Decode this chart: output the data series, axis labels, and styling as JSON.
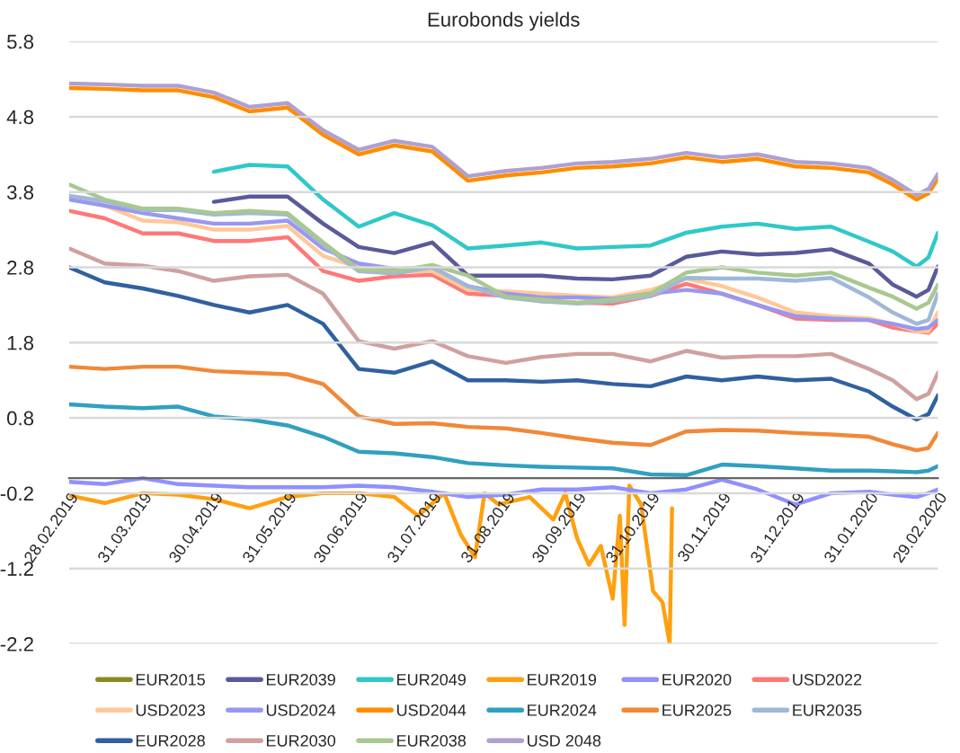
{
  "chart_data": {
    "type": "line",
    "title": "Eurobonds yields",
    "x": [
      "2019-02-28",
      "2019-03-15",
      "2019-03-31",
      "2019-04-15",
      "2019-04-30",
      "2019-05-15",
      "2019-05-31",
      "2019-06-15",
      "2019-06-30",
      "2019-07-15",
      "2019-07-31",
      "2019-08-15",
      "2019-08-31",
      "2019-09-15",
      "2019-09-30",
      "2019-10-15",
      "2019-10-31",
      "2019-11-15",
      "2019-11-30",
      "2019-12-15",
      "2019-12-31",
      "2020-01-15",
      "2020-01-31",
      "2020-02-10",
      "2020-02-20",
      "2020-02-25",
      "2020-02-29"
    ],
    "xlim": [
      "2019-02-28",
      "2020-02-29"
    ],
    "xticks": [
      {
        "value": "2019-02-28",
        "label": "28.02.2019"
      },
      {
        "value": "2019-03-31",
        "label": "31.03.2019"
      },
      {
        "value": "2019-04-30",
        "label": "30.04.2019"
      },
      {
        "value": "2019-05-31",
        "label": "31.05.2019"
      },
      {
        "value": "2019-06-30",
        "label": "30.06.2019"
      },
      {
        "value": "2019-07-31",
        "label": "31.07.2019"
      },
      {
        "value": "2019-08-31",
        "label": "31.08.2019"
      },
      {
        "value": "2019-09-30",
        "label": "30.09.2019"
      },
      {
        "value": "2019-10-31",
        "label": "31.10.2019"
      },
      {
        "value": "2019-11-30",
        "label": "30.11.2019"
      },
      {
        "value": "2019-12-31",
        "label": "31.12.2019"
      },
      {
        "value": "2020-01-31",
        "label": "31.01.2020"
      },
      {
        "value": "2020-02-29",
        "label": "29.02.2020"
      }
    ],
    "ylim": [
      -2.2,
      5.8
    ],
    "yticks": [
      -2.2,
      -1.2,
      -0.2,
      0.8,
      1.8,
      2.8,
      3.8,
      4.8,
      5.8
    ],
    "grid": "y",
    "legend": "bottom",
    "series": [
      {
        "name": "EUR2015",
        "color": "#8a8a20",
        "values": [
          null,
          null,
          null,
          null,
          null,
          null,
          null,
          null,
          null,
          null,
          null,
          null,
          null,
          null,
          null,
          null,
          null,
          null,
          null,
          null,
          null,
          null,
          null,
          null,
          null,
          null,
          null
        ]
      },
      {
        "name": "EUR2039",
        "color": "#5a5a9a",
        "x": [
          "2019-04-30",
          "2019-05-15",
          "2019-05-31",
          "2019-06-15",
          "2019-06-30",
          "2019-07-15",
          "2019-07-31",
          "2019-08-15",
          "2019-08-31",
          "2019-09-15",
          "2019-09-30",
          "2019-10-15",
          "2019-10-31",
          "2019-11-15",
          "2019-11-30",
          "2019-12-15",
          "2019-12-31",
          "2020-01-15",
          "2020-01-31",
          "2020-02-10",
          "2020-02-20",
          "2020-02-25",
          "2020-02-29"
        ],
        "values": [
          3.67,
          3.74,
          3.74,
          3.38,
          3.07,
          2.99,
          3.13,
          2.69,
          2.69,
          2.69,
          2.65,
          2.64,
          2.69,
          2.94,
          3.01,
          2.97,
          2.99,
          3.04,
          2.85,
          2.57,
          2.41,
          2.5,
          2.81
        ]
      },
      {
        "name": "EUR2049",
        "color": "#30c8c8",
        "x": [
          "2019-04-30",
          "2019-05-15",
          "2019-05-31",
          "2019-06-15",
          "2019-06-30",
          "2019-07-15",
          "2019-07-31",
          "2019-08-15",
          "2019-08-31",
          "2019-09-15",
          "2019-09-30",
          "2019-10-15",
          "2019-10-31",
          "2019-11-15",
          "2019-11-30",
          "2019-12-15",
          "2019-12-31",
          "2020-01-15",
          "2020-01-31",
          "2020-02-10",
          "2020-02-20",
          "2020-02-25",
          "2020-02-29"
        ],
        "values": [
          4.07,
          4.16,
          4.14,
          3.7,
          3.34,
          3.52,
          3.36,
          3.05,
          3.09,
          3.13,
          3.05,
          3.07,
          3.09,
          3.26,
          3.34,
          3.38,
          3.31,
          3.34,
          3.14,
          3.01,
          2.81,
          2.93,
          3.26
        ]
      },
      {
        "name": "EUR2019",
        "color": "#ffa010",
        "x": [
          "2019-02-28",
          "2019-03-15",
          "2019-03-31",
          "2019-04-15",
          "2019-04-30",
          "2019-05-15",
          "2019-05-31",
          "2019-06-15",
          "2019-06-30",
          "2019-07-15",
          "2019-07-25",
          "2019-08-05",
          "2019-08-12",
          "2019-08-18",
          "2019-08-22",
          "2019-08-28",
          "2019-09-10",
          "2019-09-20",
          "2019-09-25",
          "2019-09-30",
          "2019-10-05",
          "2019-10-10",
          "2019-10-15",
          "2019-10-18",
          "2019-10-20",
          "2019-10-22",
          "2019-10-27",
          "2019-11-01",
          "2019-11-05",
          "2019-11-08",
          "2019-11-09"
        ],
        "values": [
          -0.23,
          -0.33,
          -0.2,
          -0.22,
          -0.28,
          -0.4,
          -0.25,
          -0.2,
          -0.2,
          -0.25,
          -0.5,
          -0.2,
          -0.75,
          -1.05,
          -0.2,
          -0.35,
          -0.25,
          -0.55,
          -0.2,
          -0.8,
          -1.15,
          -0.9,
          -1.6,
          -0.5,
          -1.95,
          -0.1,
          -0.35,
          -1.5,
          -1.65,
          -2.2,
          -0.4
        ]
      },
      {
        "name": "EUR2020",
        "color": "#9090ff",
        "values": [
          -0.05,
          -0.08,
          0.0,
          -0.08,
          -0.1,
          -0.12,
          -0.12,
          -0.12,
          -0.1,
          -0.12,
          -0.18,
          -0.25,
          -0.22,
          -0.15,
          -0.15,
          -0.12,
          -0.2,
          -0.15,
          -0.02,
          -0.15,
          -0.35,
          -0.2,
          -0.18,
          -0.22,
          -0.25,
          -0.2,
          -0.15
        ]
      },
      {
        "name": "USD2022",
        "color": "#ff7878",
        "values": [
          3.55,
          3.45,
          3.25,
          3.25,
          3.15,
          3.15,
          3.2,
          2.75,
          2.62,
          2.68,
          2.7,
          2.45,
          2.42,
          2.35,
          2.33,
          2.32,
          2.42,
          2.58,
          2.45,
          2.3,
          2.12,
          2.1,
          2.1,
          2.0,
          1.95,
          1.93,
          2.05
        ]
      },
      {
        "name": "USD2023",
        "color": "#ffc898",
        "values": [
          3.75,
          3.62,
          3.42,
          3.4,
          3.3,
          3.3,
          3.35,
          2.95,
          2.8,
          2.75,
          2.75,
          2.5,
          2.48,
          2.45,
          2.42,
          2.4,
          2.5,
          2.65,
          2.55,
          2.4,
          2.2,
          2.15,
          2.12,
          2.05,
          1.95,
          1.95,
          2.2
        ]
      },
      {
        "name": "USD2024",
        "color": "#9898f0",
        "values": [
          3.7,
          3.62,
          3.52,
          3.45,
          3.38,
          3.38,
          3.42,
          3.05,
          2.85,
          2.78,
          2.8,
          2.55,
          2.45,
          2.4,
          2.4,
          2.38,
          2.45,
          2.5,
          2.45,
          2.3,
          2.15,
          2.12,
          2.1,
          2.05,
          1.98,
          2.0,
          2.1
        ]
      },
      {
        "name": "USD2044",
        "color": "#ff8c00",
        "values": [
          5.18,
          5.17,
          5.15,
          5.15,
          5.06,
          4.87,
          4.92,
          4.56,
          4.3,
          4.42,
          4.34,
          3.95,
          4.02,
          4.06,
          4.12,
          4.14,
          4.18,
          4.26,
          4.2,
          4.24,
          4.14,
          4.12,
          4.06,
          3.9,
          3.7,
          3.78,
          3.98
        ]
      },
      {
        "name": "EUR2024",
        "color": "#30a0c0",
        "values": [
          0.98,
          0.95,
          0.93,
          0.95,
          0.82,
          0.78,
          0.7,
          0.55,
          0.35,
          0.33,
          0.28,
          0.2,
          0.17,
          0.15,
          0.14,
          0.13,
          0.05,
          0.04,
          0.18,
          0.16,
          0.13,
          0.1,
          0.1,
          0.09,
          0.08,
          0.1,
          0.16
        ]
      },
      {
        "name": "EUR2025",
        "color": "#f08838",
        "values": [
          1.48,
          1.45,
          1.48,
          1.48,
          1.42,
          1.4,
          1.38,
          1.25,
          0.82,
          0.72,
          0.73,
          0.68,
          0.66,
          0.6,
          0.53,
          0.47,
          0.44,
          0.62,
          0.64,
          0.63,
          0.6,
          0.58,
          0.55,
          0.45,
          0.37,
          0.4,
          0.6
        ]
      },
      {
        "name": "EUR2035",
        "color": "#a0b8d8",
        "values": [
          3.75,
          3.68,
          3.56,
          3.56,
          3.5,
          3.52,
          3.5,
          3.1,
          2.75,
          2.72,
          2.8,
          2.55,
          2.4,
          2.35,
          2.32,
          2.35,
          2.42,
          2.66,
          2.65,
          2.65,
          2.62,
          2.66,
          2.4,
          2.2,
          2.05,
          2.1,
          2.45
        ]
      },
      {
        "name": "EUR2028",
        "color": "#3060a0",
        "values": [
          2.8,
          2.6,
          2.52,
          2.42,
          2.3,
          2.2,
          2.3,
          2.05,
          1.45,
          1.4,
          1.55,
          1.3,
          1.3,
          1.28,
          1.3,
          1.25,
          1.22,
          1.35,
          1.3,
          1.35,
          1.3,
          1.32,
          1.15,
          0.95,
          0.78,
          0.85,
          1.1
        ]
      },
      {
        "name": "EUR2030",
        "color": "#d0a0a0",
        "values": [
          3.05,
          2.85,
          2.82,
          2.75,
          2.62,
          2.68,
          2.7,
          2.45,
          1.82,
          1.72,
          1.82,
          1.62,
          1.53,
          1.61,
          1.65,
          1.65,
          1.55,
          1.69,
          1.6,
          1.62,
          1.62,
          1.65,
          1.45,
          1.3,
          1.05,
          1.12,
          1.4
        ]
      },
      {
        "name": "EUR2038",
        "color": "#a8c890",
        "values": [
          3.9,
          3.7,
          3.58,
          3.58,
          3.52,
          3.55,
          3.52,
          3.13,
          2.77,
          2.75,
          2.83,
          2.69,
          2.41,
          2.37,
          2.33,
          2.37,
          2.45,
          2.73,
          2.8,
          2.73,
          2.69,
          2.73,
          2.53,
          2.41,
          2.25,
          2.33,
          2.57
        ]
      },
      {
        "name": "USD 2048",
        "color": "#b0a0d0",
        "values": [
          5.24,
          5.23,
          5.21,
          5.21,
          5.12,
          4.93,
          4.98,
          4.62,
          4.36,
          4.48,
          4.4,
          4.01,
          4.08,
          4.12,
          4.18,
          4.2,
          4.24,
          4.32,
          4.26,
          4.3,
          4.2,
          4.18,
          4.12,
          3.96,
          3.76,
          3.84,
          4.04
        ]
      }
    ]
  }
}
